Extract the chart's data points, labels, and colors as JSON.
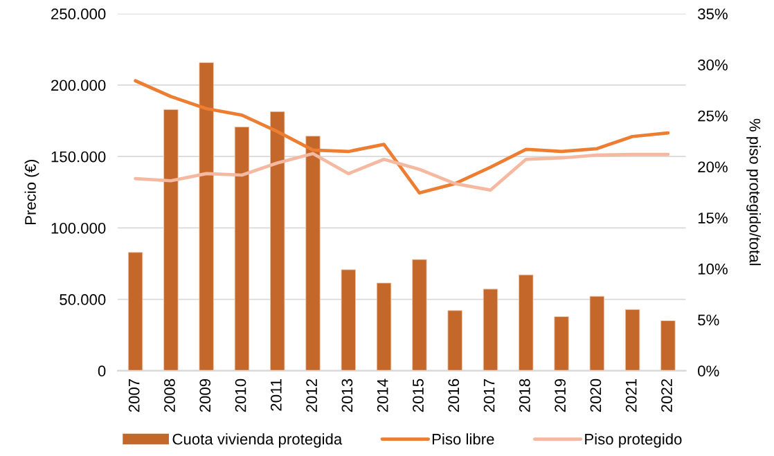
{
  "chart_data": {
    "type": "bar",
    "ylabel": "Precio (€)",
    "y2label": "% piso protegido/total",
    "categories": [
      "2007",
      "2008",
      "2009",
      "2010",
      "2011",
      "2012",
      "2013",
      "2014",
      "2015",
      "2016",
      "2017",
      "2018",
      "2019",
      "2020",
      "2021",
      "2022"
    ],
    "series": [
      {
        "name": "Cuota vivienda protegida",
        "axis": "y2",
        "color": "#c4672a",
        "values": [
          11.6,
          25.6,
          30.2,
          23.9,
          25.4,
          23.0,
          9.9,
          8.6,
          10.9,
          5.9,
          8.0,
          9.4,
          5.3,
          7.3,
          6.0,
          4.9
        ]
      },
      {
        "name": "Piso libre",
        "type": "line",
        "color": "#ed7d31",
        "values": [
          203000,
          192000,
          183500,
          179000,
          167500,
          154500,
          153500,
          158500,
          124500,
          131000,
          142500,
          155000,
          153500,
          155500,
          164000,
          166500
        ]
      },
      {
        "name": "Piso protegido",
        "type": "line",
        "color": "#f4b9a0",
        "values": [
          134500,
          133000,
          138000,
          137000,
          145500,
          152000,
          138000,
          148000,
          141000,
          131000,
          126500,
          148000,
          149000,
          151000,
          151500,
          151500
        ]
      }
    ],
    "ylim": [
      0,
      250000
    ],
    "yticks": [
      0,
      {
        "value": 50000,
        "label": "50.000"
      },
      {
        "value": 100000,
        "label": "100.000"
      },
      {
        "value": 150000,
        "label": "150.000"
      },
      {
        "value": 200000,
        "label": "200.000"
      },
      {
        "value": 250000,
        "label": "250.000"
      }
    ],
    "y2lim": [
      0,
      35
    ],
    "y2ticks": [
      {
        "value": 0,
        "label": "0%"
      },
      {
        "value": 5,
        "label": "5%"
      },
      {
        "value": 10,
        "label": "10%"
      },
      {
        "value": 15,
        "label": "15%"
      },
      {
        "value": 20,
        "label": "20%"
      },
      {
        "value": 25,
        "label": "25%"
      },
      {
        "value": 30,
        "label": "30%"
      },
      {
        "value": 35,
        "label": "35%"
      }
    ],
    "grid": "y",
    "legend": "bottom"
  }
}
